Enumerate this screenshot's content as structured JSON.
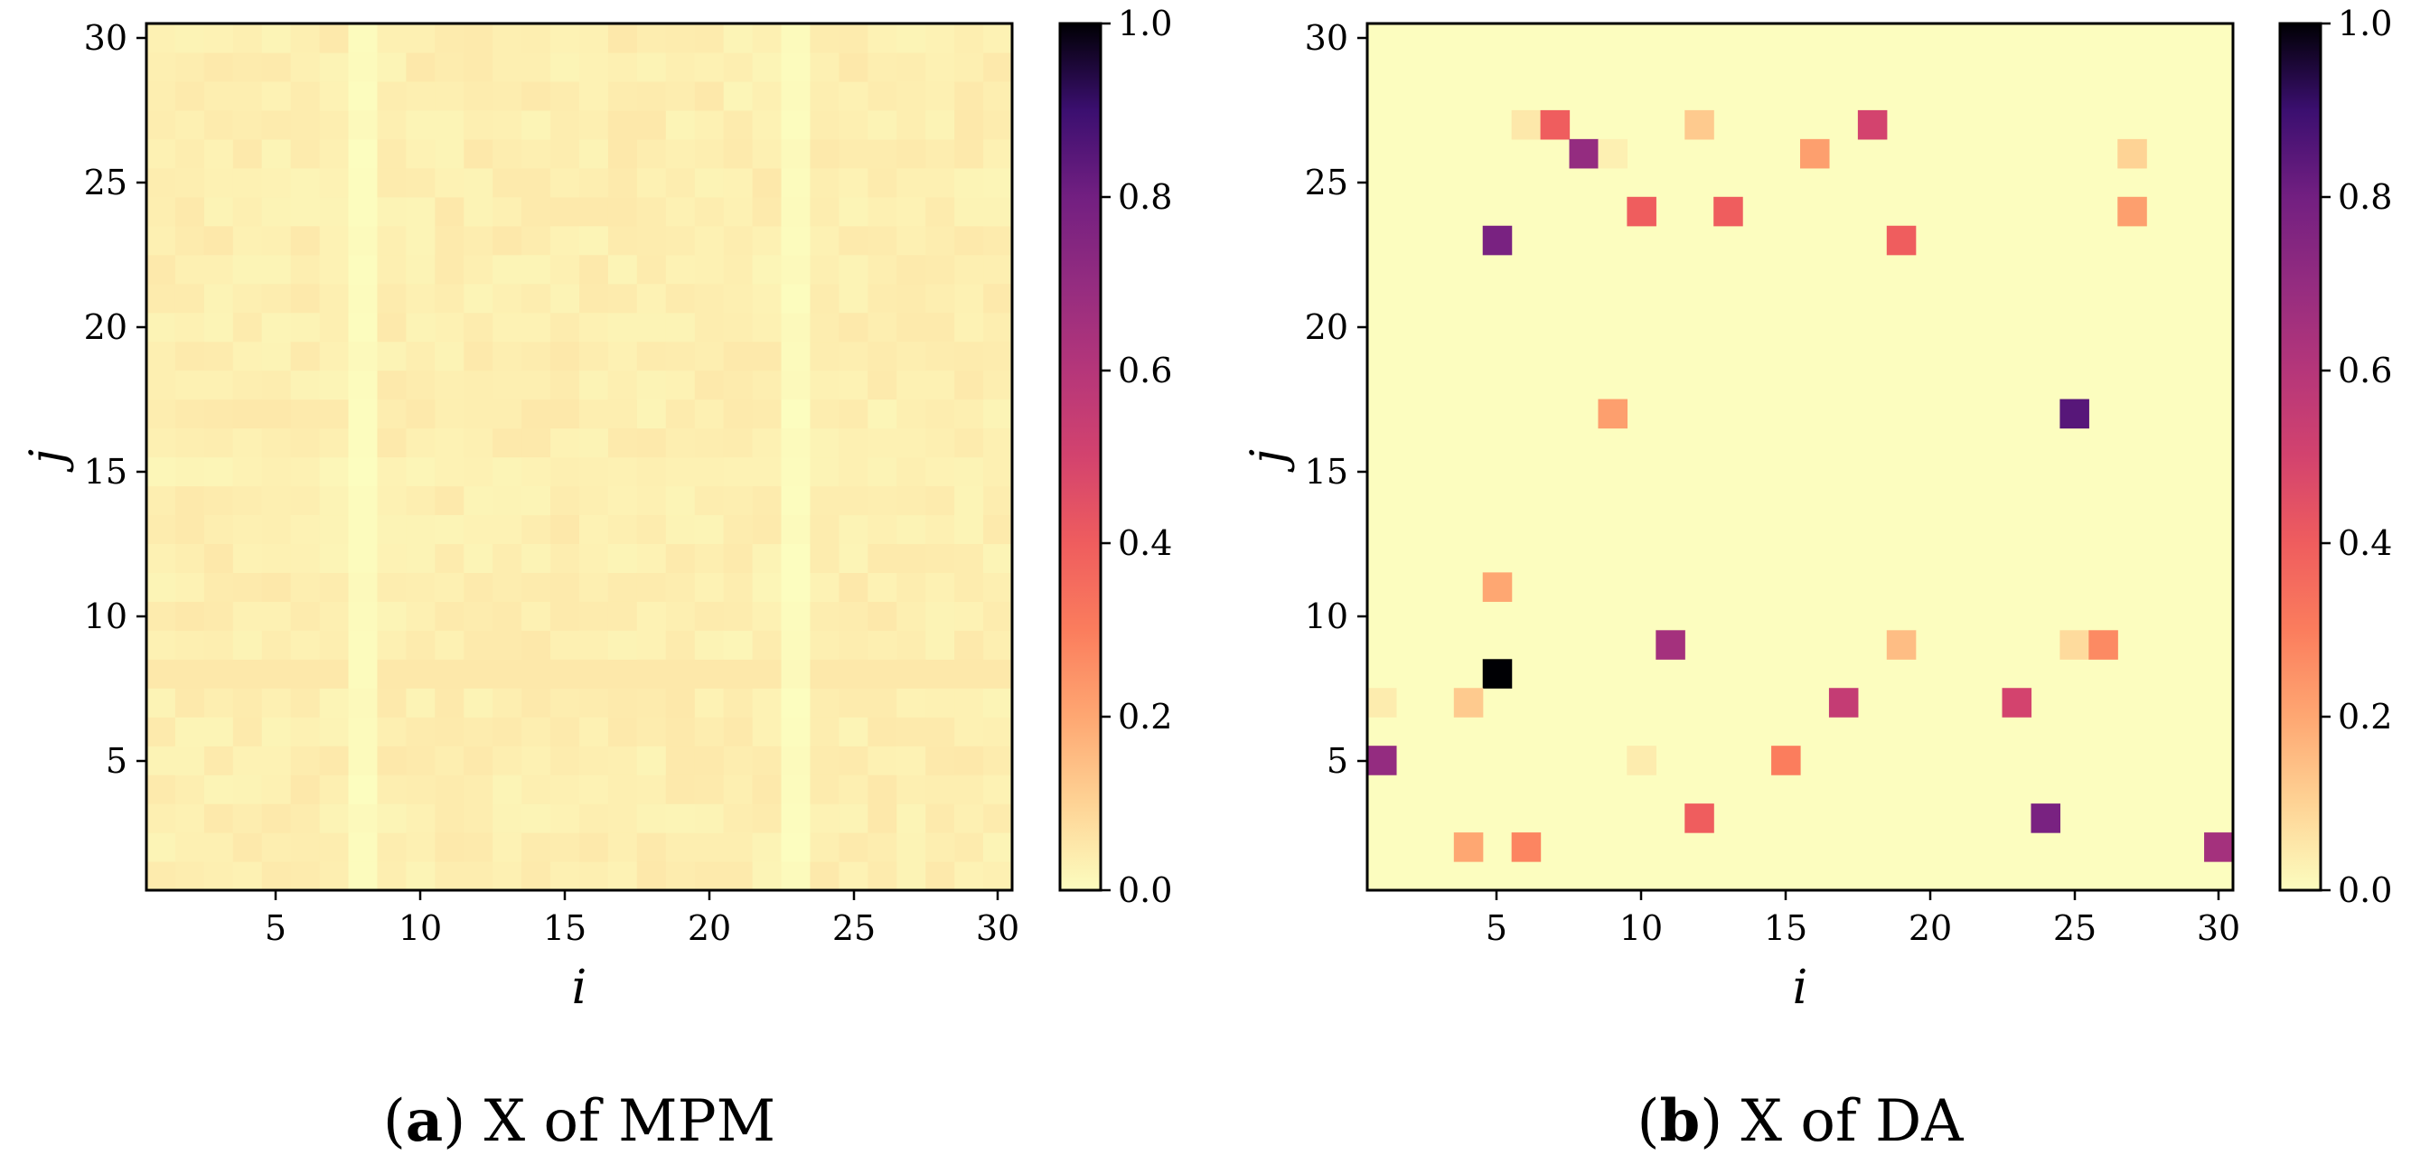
{
  "chart_data": [
    {
      "type": "heatmap",
      "panel_id": "a",
      "caption_letter": "a",
      "caption_text": "X of MPM",
      "xlabel": "i",
      "ylabel": "j",
      "xlim": [
        0.5,
        30.5
      ],
      "ylim": [
        0.5,
        30.5
      ],
      "xticks": [
        "5",
        "10",
        "15",
        "20",
        "25",
        "30"
      ],
      "yticks": [
        "5",
        "10",
        "15",
        "20",
        "25",
        "30"
      ],
      "colormap": "magma_r",
      "colorbar": {
        "min": 0.0,
        "max": 1.0,
        "ticks": [
          "0.0",
          "0.2",
          "0.4",
          "0.6",
          "0.8",
          "1.0"
        ]
      },
      "fill": "dense",
      "value_range": [
        0.0,
        0.07
      ],
      "light_columns": [
        8,
        23
      ],
      "light_column_value": 0.0,
      "dark_row": 8,
      "dark_row_value": 0.05,
      "lighter_row": 15,
      "lighter_row_value": 0.015,
      "base_value": 0.035
    },
    {
      "type": "heatmap",
      "panel_id": "b",
      "caption_letter": "b",
      "caption_text": "X of DA",
      "xlabel": "i",
      "ylabel": "j",
      "xlim": [
        0.5,
        30.5
      ],
      "ylim": [
        0.5,
        30.5
      ],
      "xticks": [
        "5",
        "10",
        "15",
        "20",
        "25",
        "30"
      ],
      "yticks": [
        "5",
        "10",
        "15",
        "20",
        "25",
        "30"
      ],
      "colormap": "magma_r",
      "colorbar": {
        "min": 0.0,
        "max": 1.0,
        "ticks": [
          "0.0",
          "0.2",
          "0.4",
          "0.6",
          "0.8",
          "1.0"
        ]
      },
      "fill": "sparse",
      "background_value": 0.0,
      "cells": [
        [
          6,
          27,
          0.05
        ],
        [
          7,
          27,
          0.4
        ],
        [
          12,
          27,
          0.12
        ],
        [
          18,
          27,
          0.5
        ],
        [
          8,
          26,
          0.7
        ],
        [
          9,
          26,
          0.03
        ],
        [
          16,
          26,
          0.22
        ],
        [
          27,
          26,
          0.1
        ],
        [
          10,
          24,
          0.4
        ],
        [
          13,
          24,
          0.4
        ],
        [
          27,
          24,
          0.22
        ],
        [
          5,
          23,
          0.78
        ],
        [
          19,
          23,
          0.4
        ],
        [
          9,
          17,
          0.22
        ],
        [
          25,
          17,
          0.85
        ],
        [
          5,
          11,
          0.2
        ],
        [
          11,
          9,
          0.65
        ],
        [
          19,
          9,
          0.15
        ],
        [
          25,
          9,
          0.08
        ],
        [
          26,
          9,
          0.27
        ],
        [
          5,
          8,
          1.0
        ],
        [
          1,
          7,
          0.04
        ],
        [
          4,
          7,
          0.12
        ],
        [
          17,
          7,
          0.55
        ],
        [
          23,
          7,
          0.5
        ],
        [
          1,
          5,
          0.7
        ],
        [
          10,
          5,
          0.04
        ],
        [
          15,
          5,
          0.3
        ],
        [
          12,
          3,
          0.4
        ],
        [
          24,
          3,
          0.78
        ],
        [
          4,
          2,
          0.2
        ],
        [
          6,
          2,
          0.28
        ],
        [
          30,
          2,
          0.65
        ]
      ]
    }
  ]
}
